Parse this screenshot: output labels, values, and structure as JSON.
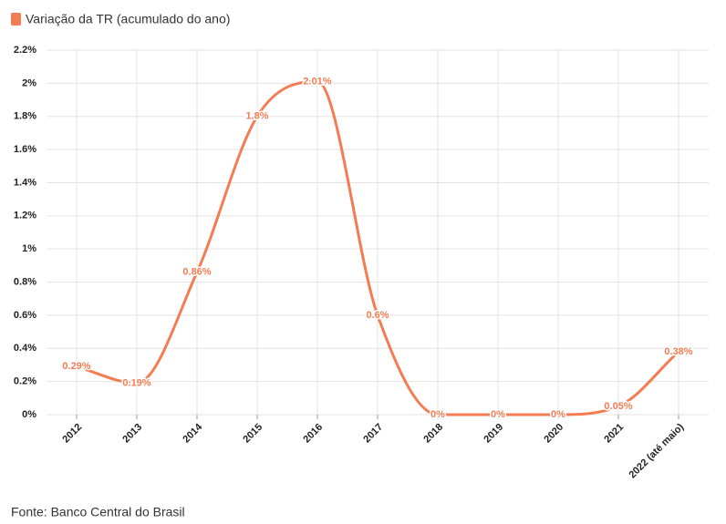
{
  "chart_data": {
    "type": "line",
    "series": [
      {
        "name": "Variação da TR (acumulado do ano)",
        "color": "#f47c52",
        "values": [
          0.29,
          0.19,
          0.86,
          1.8,
          2.01,
          0.6,
          0,
          0,
          0,
          0.05,
          0.38
        ],
        "value_labels": [
          "0.29%",
          "0.19%",
          "0.86%",
          "1.8%",
          "2.01%",
          "0.6%",
          "0%",
          "0%",
          "0%",
          "0.05%",
          "0.38%"
        ]
      }
    ],
    "categories": [
      "2012",
      "2013",
      "2014",
      "2015",
      "2016",
      "2017",
      "2018",
      "2019",
      "2020",
      "2021",
      "2022 (até maio)"
    ],
    "ylim": [
      0,
      2.2
    ],
    "yticks": [
      {
        "value": 0,
        "label": "0%"
      },
      {
        "value": 0.2,
        "label": "0.2%"
      },
      {
        "value": 0.4,
        "label": "0.4%"
      },
      {
        "value": 0.6,
        "label": "0.6%"
      },
      {
        "value": 0.8,
        "label": "0.8%"
      },
      {
        "value": 1,
        "label": "1%"
      },
      {
        "value": 1.2,
        "label": "1.2%"
      },
      {
        "value": 1.4,
        "label": "1.4%"
      },
      {
        "value": 1.6,
        "label": "1.6%"
      },
      {
        "value": 1.8,
        "label": "1.8%"
      },
      {
        "value": 2,
        "label": "2%"
      },
      {
        "value": 2.2,
        "label": "2.2%"
      }
    ],
    "grid": true,
    "source": "Fonte: Banco Central do Brasil"
  }
}
